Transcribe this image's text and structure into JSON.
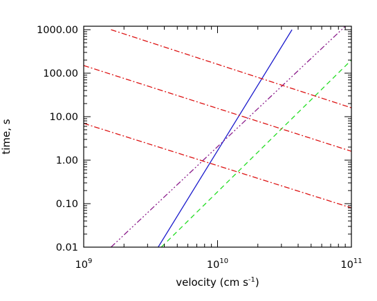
{
  "chart_data": {
    "type": "line",
    "xscale": "log",
    "yscale": "log",
    "xlabel": "velocity (cm s",
    "xlabel_sup": "-1",
    "xlabel_end": ")",
    "ylabel": "time, s",
    "xlim": [
      1000000000.0,
      100000000000.0
    ],
    "ylim": [
      0.01,
      1200
    ],
    "grid": false,
    "x_ticks": [
      {
        "value": 1000000000.0,
        "base": "10",
        "exp": "9"
      },
      {
        "value": 10000000000.0,
        "base": "10",
        "exp": "10"
      },
      {
        "value": 100000000000.0,
        "base": "10",
        "exp": "11"
      }
    ],
    "y_ticks": [
      {
        "value": 0.01,
        "label": "0.01"
      },
      {
        "value": 0.1,
        "label": "0.10"
      },
      {
        "value": 1,
        "label": "1.00"
      },
      {
        "value": 10,
        "label": "10.00"
      },
      {
        "value": 100,
        "label": "100.00"
      },
      {
        "value": 1000,
        "label": "1000.00"
      }
    ],
    "series": [
      {
        "id": "blue-solid",
        "color": "#1a1acc",
        "dash": "",
        "x": [
          3600000000.0,
          36000000000.0
        ],
        "y": [
          0.01,
          1000
        ]
      },
      {
        "id": "green-dashed",
        "color": "#22dd22",
        "dash": "7,5",
        "x": [
          3800000000.0,
          100000000000.0
        ],
        "y": [
          0.01,
          200
        ]
      },
      {
        "id": "purple-dash-dot-dot",
        "color": "#8a1a8a",
        "dash": "8,3,2,3,2,3,2,3",
        "x": [
          1600000000.0,
          90000000000.0
        ],
        "y": [
          0.01,
          1200
        ]
      },
      {
        "id": "red-dash-dot-1",
        "color": "#dd1111",
        "dash": "8,3,2,3",
        "x": [
          1000000000.0,
          100000000000.0
        ],
        "y": [
          7,
          0.08
        ]
      },
      {
        "id": "red-dash-dot-2",
        "color": "#dd1111",
        "dash": "8,3,2,3",
        "x": [
          1000000000.0,
          100000000000.0
        ],
        "y": [
          150,
          1.6
        ]
      },
      {
        "id": "red-dash-dot-3",
        "color": "#dd1111",
        "dash": "8,3,2,3",
        "x": [
          1600000000.0,
          100000000000.0
        ],
        "y": [
          1000,
          16
        ]
      }
    ]
  }
}
